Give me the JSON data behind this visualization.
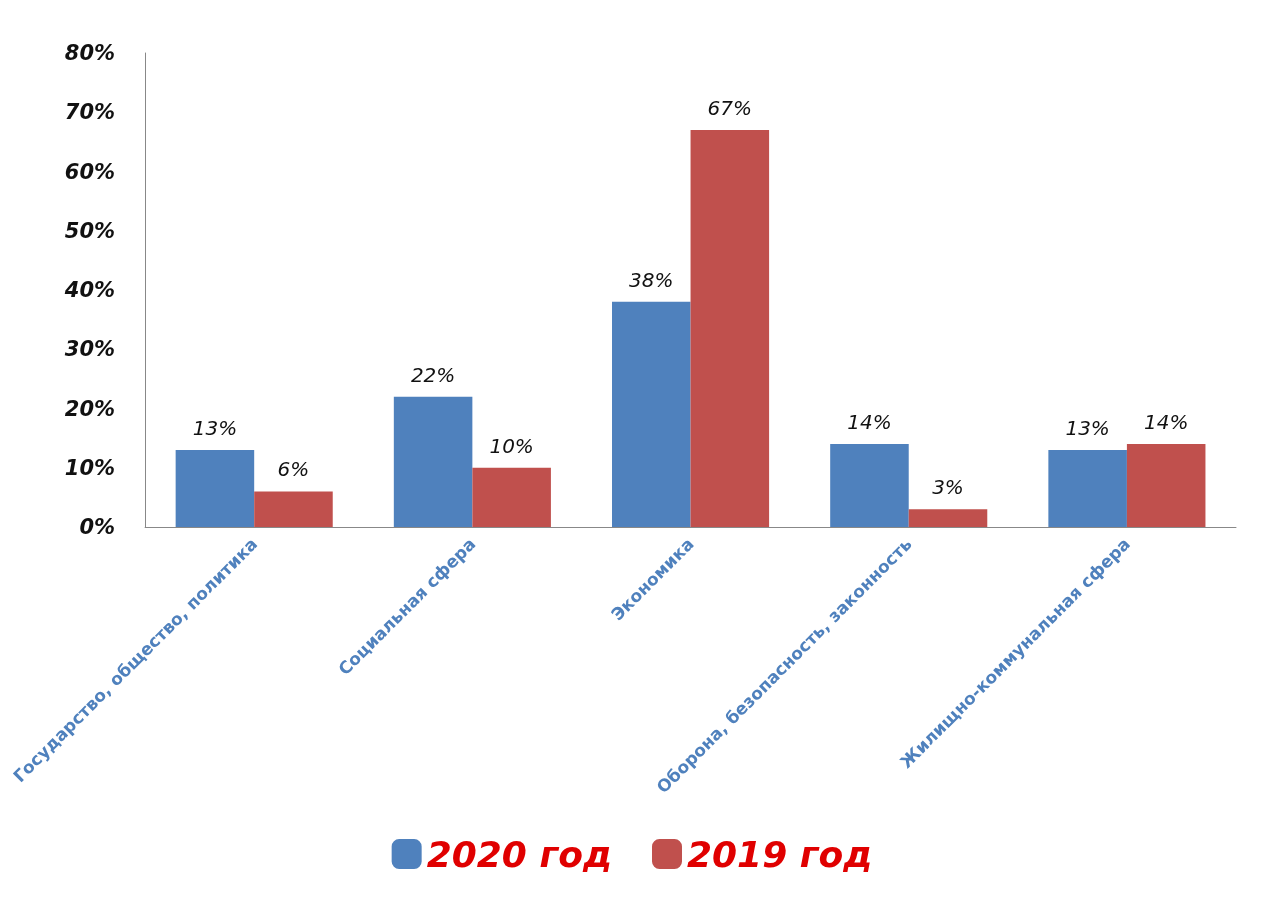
{
  "chart_data": {
    "type": "bar",
    "categories": [
      "Государство, общество, политика",
      "Социальная сфера",
      "Экономика",
      "Оборона, безопасность, законность",
      "Жилищно-коммунальная сфера"
    ],
    "series": [
      {
        "name": "2020 год",
        "color": "#4f81bd",
        "values": [
          13,
          22,
          38,
          14,
          13
        ],
        "value_labels": [
          "13%",
          "22%",
          "38%",
          "14%",
          "13%"
        ]
      },
      {
        "name": "2019 год",
        "color": "#c0504d",
        "values": [
          6,
          10,
          67,
          3,
          14
        ],
        "value_labels": [
          "6%",
          "10%",
          "67%",
          "3%",
          "14%"
        ]
      }
    ],
    "ylim": [
      0,
      80
    ],
    "yticks": [
      {
        "value": 0,
        "label": "0%"
      },
      {
        "value": 10,
        "label": "10%"
      },
      {
        "value": 20,
        "label": "20%"
      },
      {
        "value": 30,
        "label": "30%"
      },
      {
        "value": 40,
        "label": "40%"
      },
      {
        "value": 50,
        "label": "50%"
      },
      {
        "value": 60,
        "label": "60%"
      },
      {
        "value": 70,
        "label": "70%"
      },
      {
        "value": 80,
        "label": "80%"
      }
    ],
    "grid": false,
    "legend": "bottom"
  }
}
